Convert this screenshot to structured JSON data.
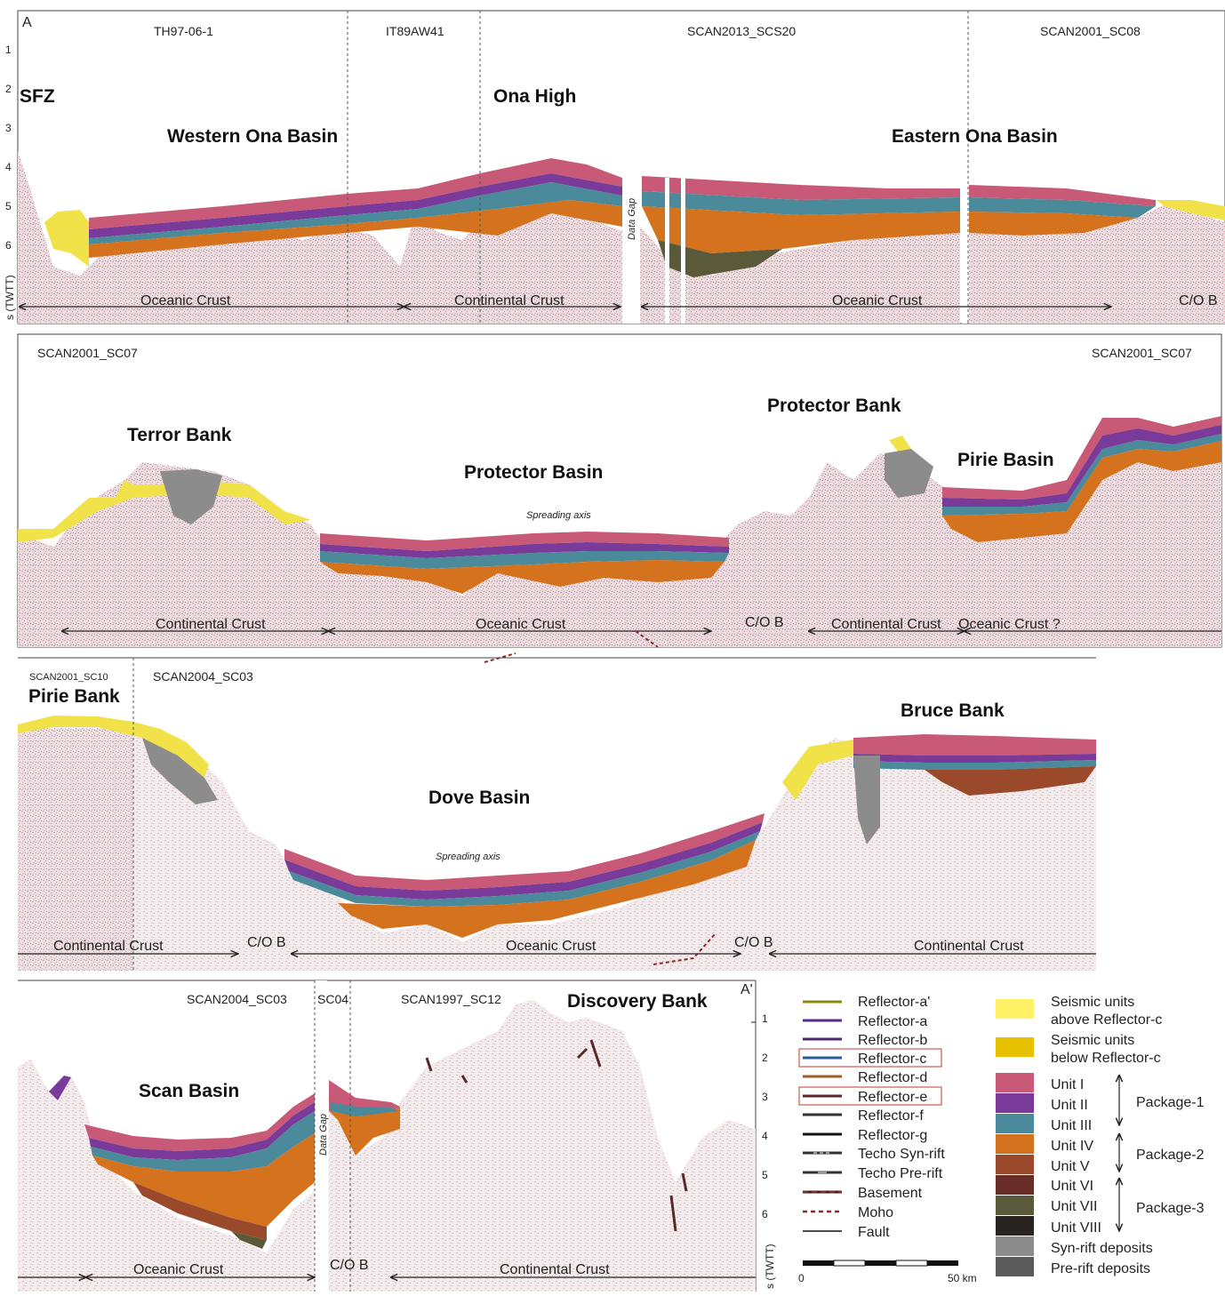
{
  "panelA": {
    "corner": "A",
    "lines": [
      "TH97-06-1",
      "IT89AW41",
      "SCAN2013_SCS20",
      "SCAN2001_SC08"
    ],
    "features": [
      "SFZ",
      "Western Ona Basin",
      "Ona High",
      "Eastern Ona Basin"
    ],
    "data_gap": "Data Gap",
    "crust": [
      "Oceanic Crust",
      "Continental Crust",
      "Oceanic Crust",
      "C/O B"
    ],
    "axis_ticks": [
      "1",
      "2",
      "3",
      "4",
      "5",
      "6"
    ],
    "axis_label": "s (TWTT)"
  },
  "panelB": {
    "lines": [
      "SCAN2001_SC07",
      "SCAN2001_SC07"
    ],
    "features": [
      "Terror Bank",
      "Protector Bank",
      "Protector Basin",
      "Pirie Basin"
    ],
    "spreading": "Spreading axis",
    "crust": [
      "Continental Crust",
      "Oceanic Crust",
      "C/O B",
      "Continental Crust",
      "Oceanic Crust ?"
    ]
  },
  "panelC": {
    "lines": [
      "SCAN2001_SC10",
      "SCAN2004_SC03"
    ],
    "features": [
      "Pirie Bank",
      "Dove Basin",
      "Bruce Bank"
    ],
    "spreading": "Spreading axis",
    "crust": [
      "Continental Crust",
      "C/O B",
      "Oceanic Crust",
      "C/O B",
      "Continental Crust"
    ]
  },
  "panelD": {
    "corner": "A'",
    "lines": [
      "SCAN2004_SC03",
      "SC04",
      "SCAN1997_SC12"
    ],
    "features": [
      "Scan Basin",
      "Discovery Bank"
    ],
    "data_gap": "Data Gap",
    "crust": [
      "Oceanic Crust",
      "C/O B",
      "Continental Crust"
    ],
    "axis_ticks": [
      "1",
      "2",
      "3",
      "4",
      "5",
      "6"
    ],
    "axis_label": "s (TWTT)"
  },
  "scalebar": {
    "start": "0",
    "end": "50 km"
  },
  "legend": {
    "reflectors": [
      {
        "label": "Reflector-a'",
        "color": "#8b8b10",
        "style": "solid"
      },
      {
        "label": "Reflector-a",
        "color": "#5a2a8a",
        "style": "solid"
      },
      {
        "label": "Reflector-b",
        "color": "#4a2a6a",
        "style": "solid"
      },
      {
        "label": "Reflector-c",
        "color": "#2a5a9a",
        "style": "solid"
      },
      {
        "label": "Reflector-d",
        "color": "#a05a2a",
        "style": "solid"
      },
      {
        "label": "Reflector-e",
        "color": "#5a2a2a",
        "style": "solid"
      },
      {
        "label": "Reflector-f",
        "color": "#333333",
        "style": "solid"
      },
      {
        "label": "Reflector-g",
        "color": "#111111",
        "style": "solid"
      },
      {
        "label": "Techo Syn-rift",
        "color": "#333333",
        "style": "dashwhite"
      },
      {
        "label": "Techo Pre-rift",
        "color": "#333333",
        "style": "dashwhite2"
      },
      {
        "label": "Basement",
        "color": "#4a1a1a",
        "style": "dashred"
      },
      {
        "label": "Moho",
        "color": "#8a2a2a",
        "style": "dotted"
      },
      {
        "label": "Fault",
        "color": "#111111",
        "style": "thin"
      }
    ],
    "units": [
      {
        "label": "Seismic units above Reflector-c",
        "line1": "Seismic units",
        "line2": "above Reflector-c",
        "color": "#fff266"
      },
      {
        "label": "Seismic units below Reflector-c",
        "line1": "Seismic units",
        "line2": "below Reflector-c",
        "color": "#e8c200"
      },
      {
        "label": "Unit I",
        "color": "#c85a78"
      },
      {
        "label": "Unit II",
        "color": "#7a3a9a"
      },
      {
        "label": "Unit III",
        "color": "#4a8a9a"
      },
      {
        "label": "Unit IV",
        "color": "#d4721e"
      },
      {
        "label": "Unit V",
        "color": "#9a4a2a"
      },
      {
        "label": "Unit VI",
        "color": "#6a2e28"
      },
      {
        "label": "Unit VII",
        "color": "#5a5a3a"
      },
      {
        "label": "Unit VIII",
        "color": "#2a2420"
      },
      {
        "label": "Syn-rift deposits",
        "color": "#8c8c8c"
      },
      {
        "label": "Pre-rift deposits",
        "color": "#5a5a5a"
      }
    ],
    "packages": [
      "Package-1",
      "Package-2",
      "Package-3"
    ]
  }
}
